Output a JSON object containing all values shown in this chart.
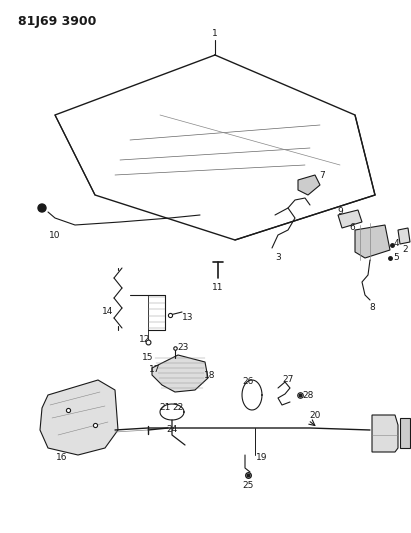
{
  "title": "81J69 3900",
  "background_color": "#ffffff",
  "line_color": "#1a1a1a",
  "text_color": "#1a1a1a",
  "title_fontsize": 9,
  "label_fontsize": 6.5,
  "figsize": [
    4.11,
    5.33
  ],
  "dpi": 100
}
